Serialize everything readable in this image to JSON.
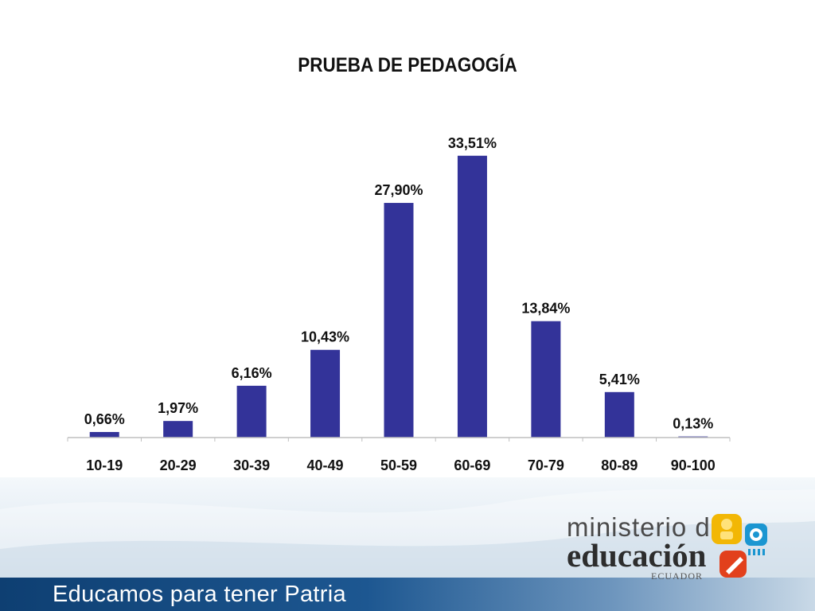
{
  "slide": {
    "slogan": "Educamos para tener Patria",
    "logo": {
      "line1": "ministerio de",
      "line2": "educación",
      "line3": "ECUADOR"
    }
  },
  "colors": {
    "bar": "#333399",
    "axis": "#bfbfbf",
    "text": "#111111"
  },
  "chart_data": {
    "type": "bar",
    "title": "PRUEBA DE PEDAGOGÍA",
    "categories": [
      "10-19",
      "20-29",
      "30-39",
      "40-49",
      "50-59",
      "60-69",
      "70-79",
      "80-89",
      "90-100"
    ],
    "values": [
      0.66,
      1.97,
      6.16,
      10.43,
      27.9,
      33.51,
      13.84,
      5.41,
      0.13
    ],
    "data_labels": [
      "0,66%",
      "1,97%",
      "6,16%",
      "10,43%",
      "27,90%",
      "33,51%",
      "13,84%",
      "5,41%",
      "0,13%"
    ],
    "ylim": [
      0,
      35
    ],
    "grid": false,
    "legend": "none",
    "xlabel": "",
    "ylabel": ""
  }
}
